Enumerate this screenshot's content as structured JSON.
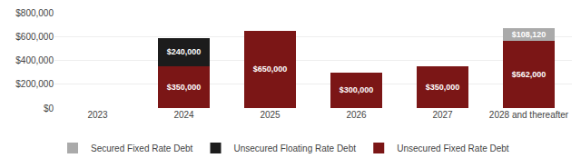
{
  "chart_data": {
    "type": "bar",
    "stacked": true,
    "categories": [
      "2023",
      "2024",
      "2025",
      "2026",
      "2027",
      "2028 and thereafter"
    ],
    "series": [
      {
        "name": "Unsecured Fixed Rate Debt",
        "color": "#7B1616",
        "values": [
          0,
          350000,
          650000,
          300000,
          350000,
          562000
        ],
        "value_labels": [
          null,
          "$350,000",
          "$650,000",
          "$300,000",
          "$350,000",
          "$562,000"
        ]
      },
      {
        "name": "Unsecured Floating Rate Debt",
        "color": "#1C1C1C",
        "values": [
          0,
          240000,
          0,
          0,
          0,
          0
        ],
        "value_labels": [
          null,
          "$240,000",
          null,
          null,
          null,
          null
        ]
      },
      {
        "name": "Secured Fixed Rate Debt",
        "color": "#AAAAAA",
        "values": [
          0,
          0,
          0,
          0,
          0,
          108120
        ],
        "value_labels": [
          null,
          null,
          null,
          null,
          null,
          "$108,120"
        ]
      }
    ],
    "data_labels": true,
    "ylim": [
      0,
      800000
    ],
    "yticks": [
      {
        "value": 0,
        "label": "$0"
      },
      {
        "value": 200000,
        "label": "$200,000"
      },
      {
        "value": 400000,
        "label": "$400,000"
      },
      {
        "value": 600000,
        "label": "$600,000"
      },
      {
        "value": 800000,
        "label": "$800,000"
      }
    ],
    "grid": true,
    "legend": "bottom"
  }
}
